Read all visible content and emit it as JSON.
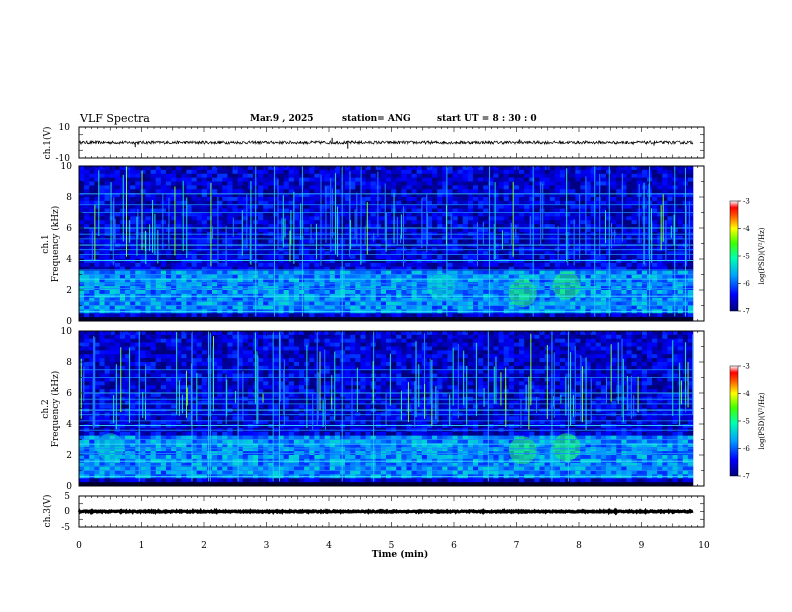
{
  "header": {
    "title": "VLF Spectra",
    "date": "Mar.9 , 2025",
    "station": "station= ANG",
    "start": "start UT = 8 : 30 : 0"
  },
  "chart_data": [
    {
      "type": "line",
      "ylabel": "ch.1(V)",
      "ylim": [
        -10,
        10
      ],
      "y_ticks": [
        "10",
        "-10"
      ],
      "x_unit": "min",
      "xlim": [
        0,
        10
      ],
      "baseline_value": 0,
      "noise_amplitude": 1,
      "spikes": [
        {
          "x": 0.9,
          "y": -3
        },
        {
          "x": 4.05,
          "y": 3
        },
        {
          "x": 4.3,
          "y": -4
        },
        {
          "x": 7.05,
          "y": 2
        },
        {
          "x": 9.2,
          "y": -2
        }
      ]
    },
    {
      "type": "heatmap",
      "ylabel": "ch.1\nFrequency (kHz)",
      "ylabel_line1": "ch.1",
      "ylabel_line2": "Frequency (kHz)",
      "xlim": [
        0,
        10
      ],
      "ylim": [
        0,
        10
      ],
      "y_ticks": [
        "0",
        "2",
        "4",
        "6",
        "8",
        "10"
      ],
      "colorbar": {
        "label": "log(PSD)(V²/Hz)",
        "range": [
          -7,
          -3
        ],
        "ticks": [
          "-3",
          "-4",
          "-5",
          "-6",
          "-7"
        ]
      },
      "horizontal_lines_khz": [
        0.6,
        1.0,
        1.3,
        1.6,
        2.1,
        2.4,
        2.7,
        3.0,
        3.3,
        3.9,
        4.3,
        4.6,
        4.9,
        5.3,
        5.6,
        6.0,
        7.0,
        7.5,
        8.2
      ],
      "emission_blobs": [
        {
          "t": 7.1,
          "f": 1.8,
          "intensity": -4.8
        },
        {
          "t": 7.8,
          "f": 2.3,
          "intensity": -4.8
        },
        {
          "t": 5.8,
          "f": 2.2,
          "intensity": -5.2
        }
      ]
    },
    {
      "type": "heatmap",
      "ylabel": "ch.2\nFrequency (kHz)",
      "ylabel_line1": "ch.2",
      "ylabel_line2": "Frequency (kHz)",
      "xlim": [
        0,
        10
      ],
      "ylim": [
        0,
        10
      ],
      "y_ticks": [
        "0",
        "2",
        "4",
        "6",
        "8",
        "10"
      ],
      "colorbar": {
        "label": "log(PSD)(V²/Hz)",
        "range": [
          -7,
          -3
        ],
        "ticks": [
          "-3",
          "-4",
          "-5",
          "-6",
          "-7"
        ]
      },
      "horizontal_lines_khz": [
        0.6,
        1.0,
        1.3,
        1.6,
        2.1,
        2.4,
        2.7,
        3.0,
        3.6,
        3.9,
        4.2,
        4.6,
        4.9,
        5.3,
        5.6,
        6.0,
        7.0,
        7.5
      ],
      "emission_blobs": [
        {
          "t": 7.1,
          "f": 2.3,
          "intensity": -4.8
        },
        {
          "t": 7.8,
          "f": 2.5,
          "intensity": -4.8
        },
        {
          "t": 0.5,
          "f": 2.5,
          "intensity": -5.3
        }
      ]
    },
    {
      "type": "line",
      "ylabel": "ch.3(V)",
      "ylim": [
        -5,
        5
      ],
      "y_ticks": [
        "5",
        "0",
        "-5"
      ],
      "x_unit": "min",
      "xlim": [
        0,
        10
      ],
      "baseline_value": 0,
      "noise_amplitude": 0.2,
      "spikes": []
    }
  ],
  "x_axis": {
    "label": "Time (min)",
    "ticks": [
      "0",
      "1",
      "2",
      "3",
      "4",
      "5",
      "6",
      "7",
      "8",
      "9",
      "10"
    ]
  },
  "colors": {
    "background": "#ffffff",
    "axis": "#000000"
  }
}
